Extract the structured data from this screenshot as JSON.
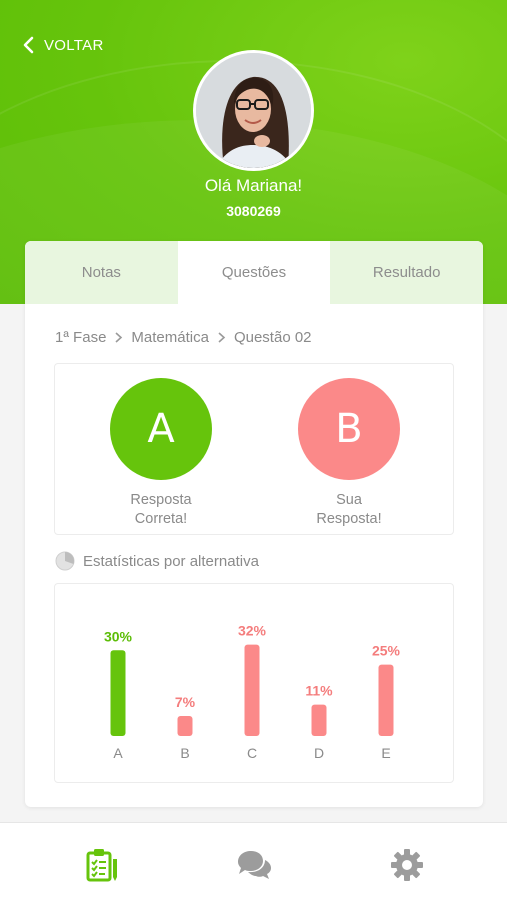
{
  "header": {
    "back_label": "VOLTAR",
    "greeting": "Olá Mariana!",
    "user_id": "3080269"
  },
  "tabs": [
    {
      "label": "Notas",
      "active": false
    },
    {
      "label": "Questões",
      "active": true
    },
    {
      "label": "Resultado",
      "active": false
    }
  ],
  "breadcrumb": [
    "1ª Fase",
    "Matemática",
    "Questão 02"
  ],
  "answers": {
    "correct": {
      "letter": "A",
      "label_line1": "Resposta",
      "label_line2": "Correta!"
    },
    "yours": {
      "letter": "B",
      "label_line1": "Sua",
      "label_line2": "Resposta!"
    }
  },
  "stats_title": "Estatísticas por alternativa",
  "colors": {
    "green": "#66c40c",
    "red": "#fb8989",
    "green_text": "#5cbd07",
    "red_text": "#f47d7d"
  },
  "chart_data": {
    "type": "bar",
    "categories": [
      "A",
      "B",
      "C",
      "D",
      "E"
    ],
    "values": [
      30,
      7,
      32,
      11,
      25
    ],
    "value_labels": [
      "30%",
      "7%",
      "32%",
      "11%",
      "25%"
    ],
    "correct_category": "A",
    "ylim": [
      0,
      35
    ]
  },
  "nav": {
    "items": [
      {
        "icon": "clipboard-checklist-icon",
        "active": true
      },
      {
        "icon": "chat-bubbles-icon",
        "active": false
      },
      {
        "icon": "gear-icon",
        "active": false
      }
    ]
  }
}
